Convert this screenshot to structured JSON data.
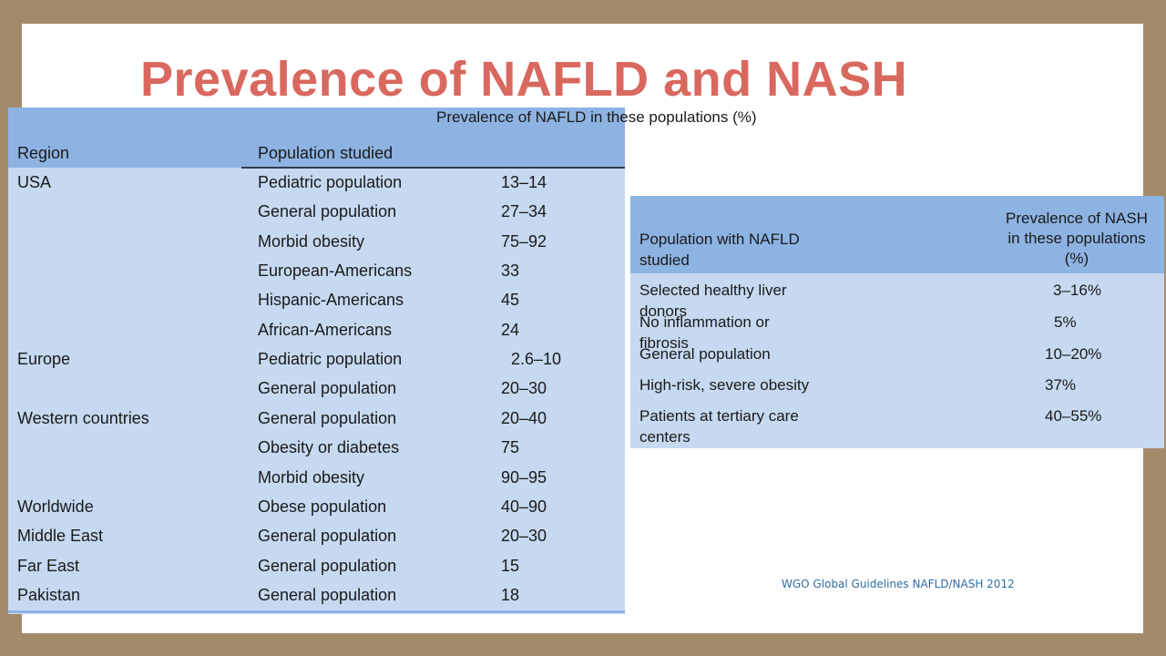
{
  "title": "Prevalence of NAFLD and NASH",
  "nafld_table": {
    "headers": {
      "region": "Region",
      "population": "Population studied",
      "prevalence": "Prevalence of NAFLD in these populations (%)"
    },
    "rows": [
      {
        "region": "USA",
        "population": "Pediatric population",
        "value": "13–14"
      },
      {
        "region": "",
        "population": "General population",
        "value": "27–34"
      },
      {
        "region": "",
        "population": "Morbid obesity",
        "value": "75–92"
      },
      {
        "region": "",
        "population": "European-Americans",
        "value": "33"
      },
      {
        "region": "",
        "population": "Hispanic-Americans",
        "value": "45"
      },
      {
        "region": "",
        "population": "African-Americans",
        "value": "24"
      },
      {
        "region": "Europe",
        "population": "Pediatric population",
        "value": "2.6–10"
      },
      {
        "region": "",
        "population": "General population",
        "value": "20–30"
      },
      {
        "region": "Western countries",
        "population": "General population",
        "value": "20–40"
      },
      {
        "region": "",
        "population": "Obesity or diabetes",
        "value": "75"
      },
      {
        "region": "",
        "population": "Morbid obesity",
        "value": "90–95"
      },
      {
        "region": "Worldwide",
        "population": "Obese population",
        "value": "40–90"
      },
      {
        "region": "Middle East",
        "population": "General population",
        "value": "20–30"
      },
      {
        "region": "Far East",
        "population": "General population",
        "value": "15"
      },
      {
        "region": "Pakistan",
        "population": "General population",
        "value": "18"
      }
    ]
  },
  "nash_table": {
    "headers": {
      "population": "Population with NAFLD studied",
      "prevalence": "Prevalence of NASH in these populations (%)"
    },
    "rows": [
      {
        "population": "Selected healthy liver donors",
        "value": "3–16%"
      },
      {
        "population": "No inflammation or fibrosis",
        "value": "5%"
      },
      {
        "population": "General population",
        "value": "10–20%"
      },
      {
        "population": "High-risk, severe obesity",
        "value": "37%"
      },
      {
        "population": "Patients at tertiary care centers",
        "value": "40–55%"
      }
    ]
  },
  "credit": "WGO Global Guidelines NAFLD/NASH 2012",
  "colors": {
    "title": "#d9685f",
    "header_fill": "#8db3e2",
    "body_fill": "#c6d9f1",
    "frame": "#a38b6a",
    "credit": "#2e6da4"
  }
}
